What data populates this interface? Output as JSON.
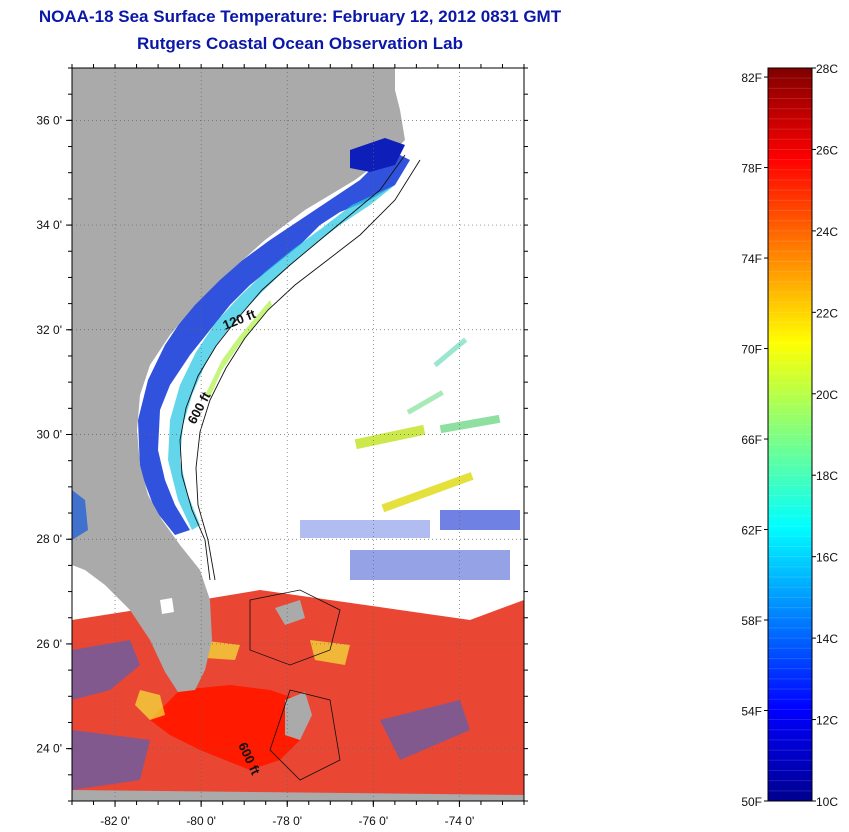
{
  "header": {
    "title": "NOAA-18 Sea Surface Temperature:  February 12, 2012 0831 GMT",
    "subtitle": "Rutgers Coastal Ocean Observation Lab"
  },
  "map": {
    "lon_range": [
      -83,
      -72.5
    ],
    "lat_range": [
      23,
      37
    ],
    "lon_ticks": [
      {
        "value": -82,
        "label": "-82 0'"
      },
      {
        "value": -80,
        "label": "-80 0'"
      },
      {
        "value": -78,
        "label": "-78 0'"
      },
      {
        "value": -76,
        "label": "-76 0'"
      },
      {
        "value": -74,
        "label": "-74 0'"
      }
    ],
    "lat_ticks": [
      {
        "value": 24,
        "label": "24 0'"
      },
      {
        "value": 26,
        "label": "26 0'"
      },
      {
        "value": 28,
        "label": "28 0'"
      },
      {
        "value": 30,
        "label": "30 0'"
      },
      {
        "value": 32,
        "label": "32 0'"
      },
      {
        "value": 34,
        "label": "34 0'"
      },
      {
        "value": 36,
        "label": "36 0'"
      }
    ],
    "contour_labels": [
      "120 ft",
      "600 ft",
      "600 ft"
    ],
    "colors": {
      "land": "#aaaaaa",
      "ocean": "#ffffff"
    }
  },
  "colorbar": {
    "celsius_range": [
      10,
      28
    ],
    "celsius_labels": [
      "28C",
      "26C",
      "24C",
      "22C",
      "20C",
      "18C",
      "16C",
      "14C",
      "12C",
      "10C"
    ],
    "fahrenheit_labels": [
      "82F",
      "78F",
      "74F",
      "70F",
      "66F",
      "62F",
      "58F",
      "54F",
      "50F"
    ],
    "colormap": [
      "#00008f",
      "#0000ff",
      "#0080ff",
      "#00ffff",
      "#80ff80",
      "#ffff00",
      "#ff8000",
      "#ff0000",
      "#800000"
    ]
  }
}
